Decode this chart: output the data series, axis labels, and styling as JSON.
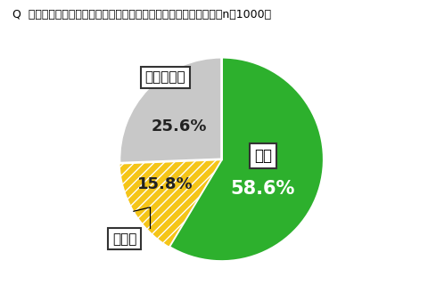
{
  "title": "Q  今回の休校措置により、教育格差を感じることがありますか。（n＝1000）",
  "slices": [
    {
      "label": "はい",
      "pct_label": "58.6%",
      "value": 58.6,
      "color": "#2db02d",
      "hatch": null,
      "label_inside": true,
      "label_color": "black",
      "pct_color": "white"
    },
    {
      "label": "いいえ",
      "pct_label": "15.8%",
      "value": 15.8,
      "color": "#f5c518",
      "hatch": "///",
      "label_inside": false,
      "label_color": "black",
      "pct_color": "#222222"
    },
    {
      "label": "わからない",
      "pct_label": "25.6%",
      "value": 25.6,
      "color": "#c8c8c8",
      "hatch": null,
      "label_inside": false,
      "label_color": "black",
      "pct_color": "#222222"
    }
  ],
  "startangle": 90,
  "bg_color": "#ffffff",
  "title_fontsize": 9.0,
  "label_fontsize": 11,
  "pct_fontsize": 12
}
